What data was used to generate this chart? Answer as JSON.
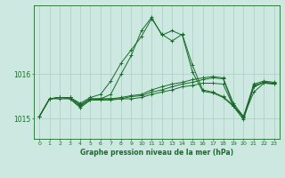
{
  "background_color": "#cce8e0",
  "line_color": "#1a6b2a",
  "grid_color": "#aaccc4",
  "xlabel": "Graphe pression niveau de la mer (hPa)",
  "ylabel_ticks": [
    1015,
    1016
  ],
  "xlim": [
    -0.5,
    23.5
  ],
  "ylim": [
    1014.55,
    1017.55
  ],
  "series": [
    {
      "x": [
        0,
        1,
        2,
        3,
        4,
        5,
        6,
        7,
        8,
        9,
        10,
        11,
        12,
        13,
        14,
        15,
        16,
        17,
        18,
        19,
        20,
        21,
        22,
        23
      ],
      "y": [
        1015.05,
        1015.45,
        1015.48,
        1015.48,
        1015.35,
        1015.48,
        1015.55,
        1015.85,
        1016.25,
        1016.55,
        1016.85,
        1017.25,
        1016.9,
        1016.75,
        1016.9,
        1016.2,
        1015.65,
        1015.6,
        1015.5,
        1015.3,
        1015.05,
        1015.6,
        1015.8,
        1015.78
      ]
    },
    {
      "x": [
        0,
        1,
        2,
        3,
        4,
        5,
        6,
        7,
        8,
        9,
        10,
        11,
        12,
        13,
        14,
        15,
        16,
        17,
        18,
        19,
        20,
        21,
        22,
        23
      ],
      "y": [
        1015.05,
        1015.45,
        1015.48,
        1015.48,
        1015.32,
        1015.45,
        1015.45,
        1015.45,
        1015.48,
        1015.52,
        1015.55,
        1015.65,
        1015.72,
        1015.78,
        1015.82,
        1015.88,
        1015.92,
        1015.95,
        1015.92,
        1015.35,
        1015.05,
        1015.78,
        1015.85,
        1015.82
      ]
    },
    {
      "x": [
        0,
        1,
        2,
        3,
        4,
        5,
        6,
        7,
        8,
        9,
        10,
        11,
        12,
        13,
        14,
        15,
        16,
        17,
        18,
        19,
        20,
        21,
        22,
        23
      ],
      "y": [
        1015.05,
        1015.45,
        1015.48,
        1015.48,
        1015.3,
        1015.45,
        1015.45,
        1015.45,
        1015.45,
        1015.45,
        1015.48,
        1015.55,
        1015.6,
        1015.65,
        1015.72,
        1015.75,
        1015.8,
        1015.8,
        1015.78,
        1015.28,
        1014.98,
        1015.72,
        1015.82,
        1015.8
      ]
    },
    {
      "x": [
        0,
        1,
        2,
        3,
        4,
        5,
        6,
        7,
        8,
        9,
        10,
        11,
        12,
        13,
        14,
        15,
        16,
        17,
        18,
        19,
        20,
        21,
        22,
        23
      ],
      "y": [
        1015.05,
        1015.45,
        1015.48,
        1015.45,
        1015.28,
        1015.42,
        1015.42,
        1015.42,
        1015.45,
        1015.5,
        1015.52,
        1015.6,
        1015.65,
        1015.72,
        1015.78,
        1015.82,
        1015.88,
        1015.92,
        1015.9,
        1015.3,
        1015.02,
        1015.75,
        1015.82,
        1015.8
      ]
    },
    {
      "x": [
        0,
        1,
        2,
        3,
        4,
        5,
        6,
        7,
        8,
        9,
        10,
        11,
        12,
        13,
        14,
        15,
        16,
        17,
        18,
        19,
        20,
        21,
        22,
        23
      ],
      "y": [
        1015.05,
        1015.45,
        1015.45,
        1015.45,
        1015.25,
        1015.42,
        1015.45,
        1015.55,
        1016.0,
        1016.42,
        1016.98,
        1017.28,
        1016.88,
        1016.98,
        1016.88,
        1016.05,
        1015.62,
        1015.58,
        1015.48,
        1015.28,
        1015.05,
        1015.72,
        1015.82,
        1015.78
      ]
    }
  ]
}
